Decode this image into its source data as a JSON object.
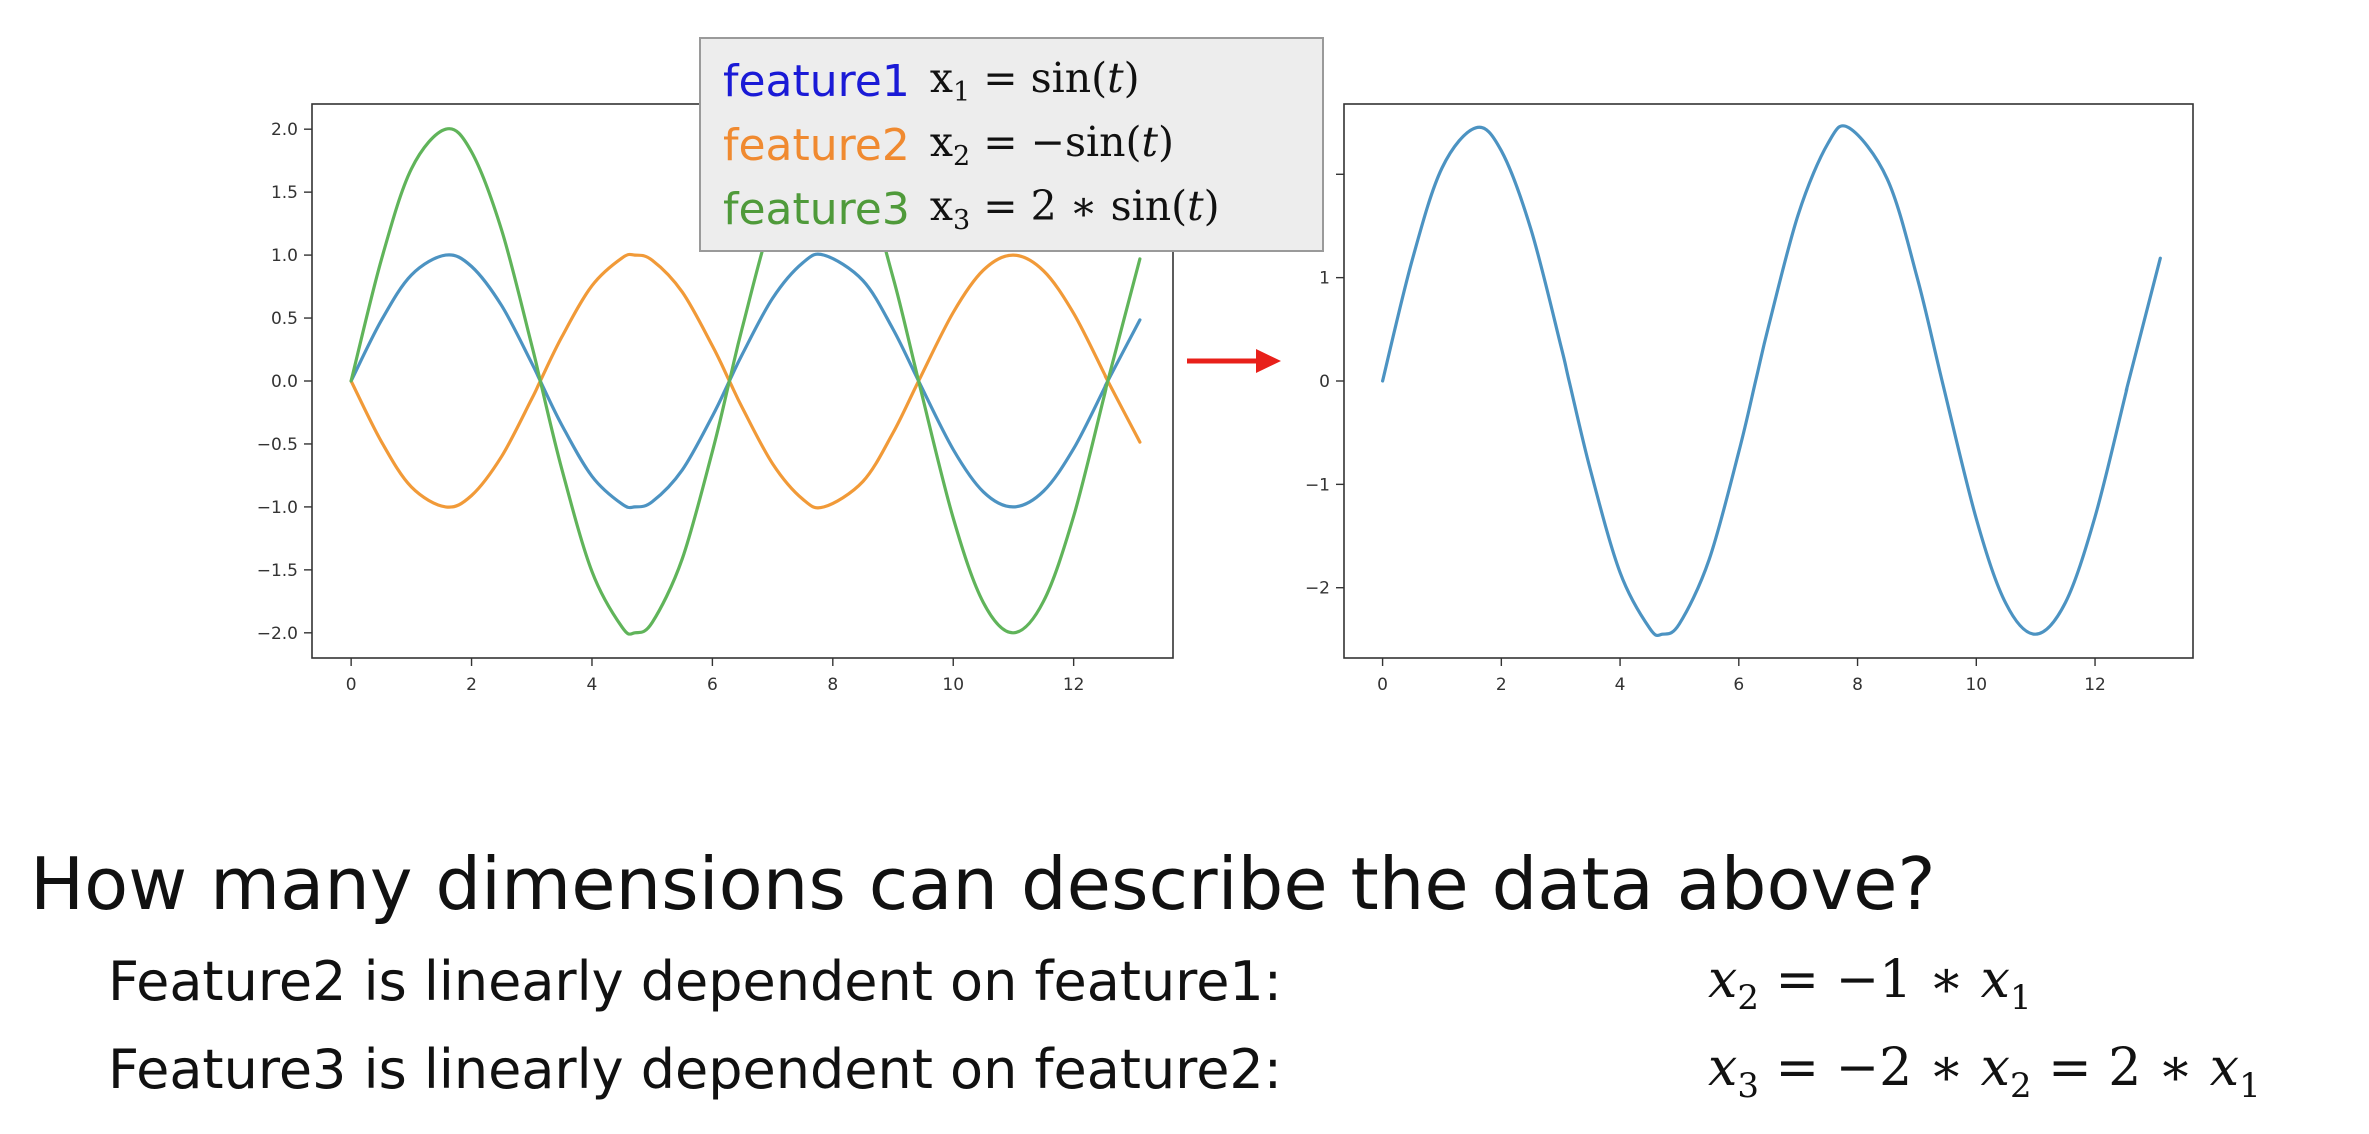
{
  "chart_data": [
    {
      "type": "line",
      "title": "",
      "xlabel": "",
      "ylabel": "",
      "xlim": [
        -0.65,
        13.65
      ],
      "ylim": [
        -2.2,
        2.2
      ],
      "grid": false,
      "x_ticks": [
        0,
        2,
        4,
        6,
        8,
        10,
        12
      ],
      "x_tick_labels": [
        "0",
        "2",
        "4",
        "6",
        "8",
        "10",
        "12"
      ],
      "y_ticks": [
        2.0,
        1.5,
        1.0,
        0.5,
        0.0,
        -0.5,
        -1.0,
        -1.5,
        -2.0
      ],
      "y_tick_labels": [
        "2.0",
        "1.5",
        "1.0",
        "0.5",
        "0.0",
        "−0.5",
        "−1.0",
        "−1.5",
        "−2.0"
      ],
      "x": [
        0,
        0.5,
        1,
        1.5708,
        2,
        2.5,
        3,
        3.1416,
        3.5,
        4,
        4.5,
        4.7124,
        5,
        5.5,
        6,
        6.2832,
        6.5,
        7,
        7.5,
        7.854,
        8.5,
        9,
        9.4248,
        10,
        10.5,
        10.9956,
        11.5,
        12,
        12.5,
        12.5664,
        13.1
      ],
      "series": [
        {
          "color": "#4c93c2",
          "y": [
            0.0,
            0.479,
            0.841,
            1.0,
            0.909,
            0.598,
            0.141,
            0.0,
            -0.351,
            -0.757,
            -0.978,
            -1.0,
            -0.959,
            -0.706,
            -0.279,
            0.0,
            0.215,
            0.657,
            0.938,
            1.0,
            0.798,
            0.412,
            0.0,
            -0.544,
            -0.88,
            -1.0,
            -0.875,
            -0.537,
            -0.066,
            0.0,
            0.485
          ]
        },
        {
          "color": "#f19a38",
          "y": [
            0.0,
            -0.479,
            -0.841,
            -1.0,
            -0.909,
            -0.598,
            -0.141,
            0.0,
            0.351,
            0.757,
            0.978,
            1.0,
            0.959,
            0.706,
            0.279,
            0.0,
            -0.215,
            -0.657,
            -0.938,
            -1.0,
            -0.798,
            -0.412,
            0.0,
            0.544,
            0.88,
            1.0,
            0.875,
            0.537,
            0.066,
            0.0,
            -0.485
          ]
        },
        {
          "color": "#60b45a",
          "y": [
            0.0,
            0.959,
            1.683,
            2.0,
            1.819,
            1.197,
            0.282,
            0.0,
            -0.702,
            -1.514,
            -1.955,
            -2.0,
            -1.918,
            -1.411,
            -0.559,
            0.0,
            0.43,
            1.314,
            1.876,
            2.0,
            1.596,
            0.824,
            0.0,
            -1.088,
            -1.759,
            -2.0,
            -1.75,
            -1.073,
            -0.132,
            0.0,
            0.97
          ]
        }
      ]
    },
    {
      "type": "line",
      "title": "",
      "xlabel": "",
      "ylabel": "",
      "xlim": [
        -0.65,
        13.65
      ],
      "ylim": [
        -2.68,
        2.68
      ],
      "grid": false,
      "x_ticks": [
        0,
        2,
        4,
        6,
        8,
        10,
        12
      ],
      "x_tick_labels": [
        "0",
        "2",
        "4",
        "6",
        "8",
        "10",
        "12"
      ],
      "y_ticks": [
        2,
        1,
        0,
        -1,
        -2
      ],
      "y_tick_labels": [
        "",
        "1",
        "0",
        "−1",
        "−2"
      ],
      "x": [
        0,
        0.5,
        1,
        1.5708,
        2,
        2.5,
        3,
        3.1416,
        3.5,
        4,
        4.5,
        4.7124,
        5,
        5.5,
        6,
        6.2832,
        6.5,
        7,
        7.5,
        7.854,
        8.5,
        9,
        9.4248,
        10,
        10.5,
        10.9956,
        11.5,
        12,
        12.5,
        12.5664,
        13.1
      ],
      "series": [
        {
          "color": "#4c93c2",
          "y": [
            0.0,
            1.174,
            2.061,
            2.45,
            2.228,
            1.466,
            0.346,
            0.0,
            -0.86,
            -1.854,
            -2.394,
            -2.45,
            -2.349,
            -1.729,
            -0.685,
            0.0,
            0.527,
            1.61,
            2.298,
            2.45,
            1.955,
            1.01,
            0.0,
            -1.333,
            -2.155,
            -2.45,
            -2.144,
            -1.315,
            -0.162,
            0.0,
            1.188
          ]
        }
      ]
    }
  ],
  "legend": [
    {
      "name": "feature1",
      "color": "#1a1ad6",
      "eq_prefix": "x",
      "eq_sub": "1",
      "eq_op": " = sin(",
      "eq_var": "t",
      "eq_end": ")"
    },
    {
      "name": "feature2",
      "color": "#f08a30",
      "eq_prefix": "x",
      "eq_sub": "2",
      "eq_op": " = −sin(",
      "eq_var": "t",
      "eq_end": ")"
    },
    {
      "name": "feature3",
      "color": "#4f9a3a",
      "eq_prefix": "x",
      "eq_sub": "3",
      "eq_op": " = 2 ∗ sin(",
      "eq_var": "t",
      "eq_end": ")"
    }
  ],
  "arrow": {
    "color": "#e8201a"
  },
  "question": "How many dimensions can describe the data above?",
  "lines": [
    {
      "text": "Feature2 is linearly dependent on feature1:",
      "math": {
        "v1": "x",
        "s1": "2",
        "mid": " = −1 ∗ ",
        "v2": "x",
        "s2": "1"
      }
    },
    {
      "text": "Feature3 is linearly dependent on feature2:",
      "math": {
        "v1": "x",
        "s1": "3",
        "mid": " = −2 ∗ ",
        "v2": "x",
        "s2": "2",
        "mid2": " = 2 ∗ ",
        "v3": "x",
        "s3": "1"
      }
    }
  ]
}
